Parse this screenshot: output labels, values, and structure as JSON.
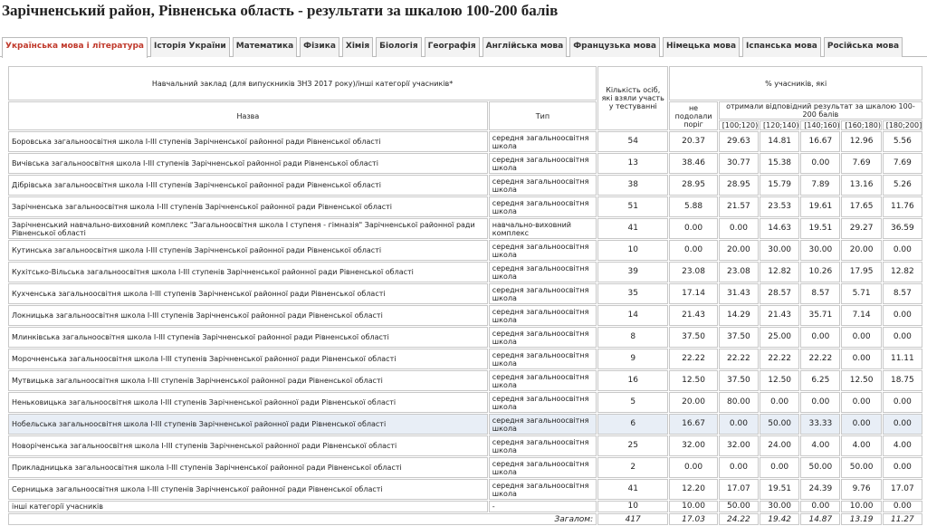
{
  "header": {
    "title": "Зарічненський район, Рівненська область - результати за шкалою 100-200 балів"
  },
  "tabs": [
    "Українська мова і література",
    "Історія України",
    "Математика",
    "Фізика",
    "Хімія",
    "Біологія",
    "Географія",
    "Англійська мова",
    "Французька мова",
    "Німецька мова",
    "Іспанська мова",
    "Російська мова"
  ],
  "table": {
    "head": {
      "institution": "Навчальний заклад (для випускників ЗНЗ 2017 року)/інші категорії учасників*",
      "count": "Кількість осіб, які взяли участь у тестуванні",
      "percent": "% учасників, які",
      "failed": "не подолали поріг",
      "got": "отримали відповідний результат за шкалою 100-200 балів",
      "name": "Назва",
      "type": "Тип",
      "ranges": [
        "[100;120)",
        "[120;140)",
        "[140;160)",
        "[160;180)",
        "[180;200]"
      ]
    },
    "rows": [
      [
        "Боровська загальноосвітня школа І-ІІІ ступенів Зарічненської районної ради Рівненської області",
        "середня загальноосвітня школа",
        "54",
        "20.37",
        "29.63",
        "14.81",
        "16.67",
        "12.96",
        "5.56"
      ],
      [
        "Вичівська загальноосвітня школа І-ІІІ ступенів Зарічненської районної ради Рівненської області",
        "середня загальноосвітня школа",
        "13",
        "38.46",
        "30.77",
        "15.38",
        "0.00",
        "7.69",
        "7.69"
      ],
      [
        "Дібрівська загальноосвітня школа І-ІІІ ступенів Зарічненської районної ради Рівненської області",
        "середня загальноосвітня школа",
        "38",
        "28.95",
        "28.95",
        "15.79",
        "7.89",
        "13.16",
        "5.26"
      ],
      [
        "Зарічненська загальноосвітня школа І-ІІІ ступенів Зарічненської районної ради Рівненської області",
        "середня загальноосвітня школа",
        "51",
        "5.88",
        "21.57",
        "23.53",
        "19.61",
        "17.65",
        "11.76"
      ],
      [
        "Зарічненський навчально-виховний комплекс \"Загальноосвітня школа І ступеня - гімназія\" Зарічненської районної ради Рівненської області",
        "навчально-виховний комплекс",
        "41",
        "0.00",
        "0.00",
        "14.63",
        "19.51",
        "29.27",
        "36.59"
      ],
      [
        "Кутинська загальноосвітня школа І-ІІІ ступенів Зарічненської районної ради Рівненської області",
        "середня загальноосвітня школа",
        "10",
        "0.00",
        "20.00",
        "30.00",
        "30.00",
        "20.00",
        "0.00"
      ],
      [
        "Кухітсько-Вільська загальноосвітня школа І-ІІІ ступенів Зарічненської районної ради Рівненської області",
        "середня загальноосвітня школа",
        "39",
        "23.08",
        "23.08",
        "12.82",
        "10.26",
        "17.95",
        "12.82"
      ],
      [
        "Кухченська загальноосвітня школа І-ІІІ ступенів Зарічненської районної ради Рівненської області",
        "середня загальноосвітня школа",
        "35",
        "17.14",
        "31.43",
        "28.57",
        "8.57",
        "5.71",
        "8.57"
      ],
      [
        "Локницька загальноосвітня школа І-ІІІ ступенів Зарічненської районної ради Рівненської області",
        "середня загальноосвітня школа",
        "14",
        "21.43",
        "14.29",
        "21.43",
        "35.71",
        "7.14",
        "0.00"
      ],
      [
        "Млинківська загальноосвітня школа І-ІІІ ступенів Зарічненської районної ради Рівненської області",
        "середня загальноосвітня школа",
        "8",
        "37.50",
        "37.50",
        "25.00",
        "0.00",
        "0.00",
        "0.00"
      ],
      [
        "Морочненська загальноосвітня школа І-ІІІ ступенів Зарічненської районної ради Рівненської області",
        "середня загальноосвітня школа",
        "9",
        "22.22",
        "22.22",
        "22.22",
        "22.22",
        "0.00",
        "11.11"
      ],
      [
        "Мутвицька загальноосвітня школа І-ІІІ ступенів Зарічненської районної ради Рівненської області",
        "середня загальноосвітня школа",
        "16",
        "12.50",
        "37.50",
        "12.50",
        "6.25",
        "12.50",
        "18.75"
      ],
      [
        "Неньковицька загальноосвітня школа І-ІІІ ступенів Зарічненської районної ради Рівненської області",
        "середня загальноосвітня школа",
        "5",
        "20.00",
        "80.00",
        "0.00",
        "0.00",
        "0.00",
        "0.00"
      ],
      [
        "Нобельська загальноосвітня школа І-ІІІ ступенів Зарічненської районної ради Рівненської області",
        "середня загальноосвітня школа",
        "6",
        "16.67",
        "0.00",
        "50.00",
        "33.33",
        "0.00",
        "0.00"
      ],
      [
        "Новоріченська загальноосвітня школа І-ІІІ ступенів Зарічненської районної ради Рівненської області",
        "середня загальноосвітня школа",
        "25",
        "32.00",
        "32.00",
        "24.00",
        "4.00",
        "4.00",
        "4.00"
      ],
      [
        "Прикладницька загальноосвітня школа І-ІІІ ступенів Зарічненської районної ради Рівненської області",
        "середня загальноосвітня школа",
        "2",
        "0.00",
        "0.00",
        "0.00",
        "50.00",
        "50.00",
        "0.00"
      ],
      [
        "Серницька загальноосвітня школа І-ІІІ ступенів Зарічненської районної ради Рівненської області",
        "середня загальноосвітня школа",
        "41",
        "12.20",
        "17.07",
        "19.51",
        "24.39",
        "9.76",
        "17.07"
      ],
      [
        "інші категорії учасників",
        "-",
        "10",
        "10.00",
        "50.00",
        "30.00",
        "0.00",
        "10.00",
        "0.00"
      ]
    ],
    "total": {
      "label": "Загалом:",
      "values": [
        "417",
        "17.03",
        "24.22",
        "19.42",
        "14.87",
        "13.19",
        "11.27"
      ]
    }
  }
}
